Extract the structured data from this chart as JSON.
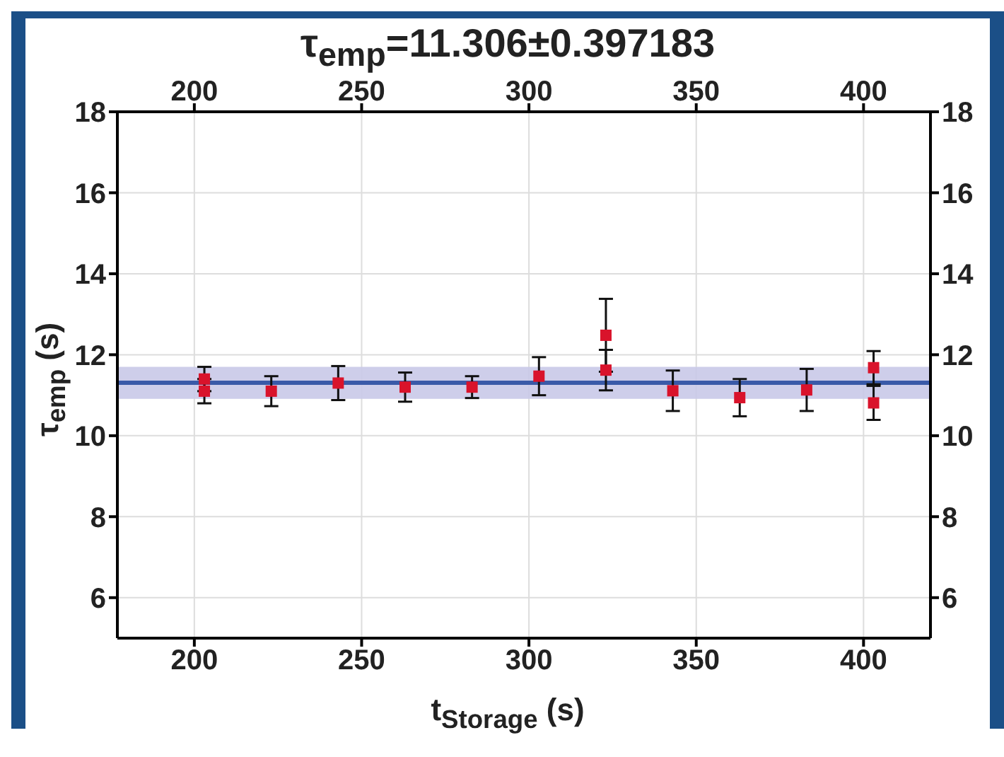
{
  "chart_data": {
    "type": "scatter",
    "title": "τ$_{emp}$=11.306±0.397183",
    "xlabel": "t$_{Storage}$ (s)",
    "ylabel": "τ$_{emp}$ (s)",
    "xlim": [
      177,
      420
    ],
    "xticks": [
      200,
      250,
      300,
      350,
      400
    ],
    "x2lim": [
      177,
      420
    ],
    "x2ticks": [
      200,
      250,
      300,
      350,
      400
    ],
    "ylim": [
      5,
      18
    ],
    "yticks": [
      6,
      8,
      10,
      12,
      14,
      16,
      18
    ],
    "y2lim": [
      5,
      18
    ],
    "y2ticks": [
      6,
      8,
      10,
      12,
      14,
      16,
      18
    ],
    "series": [
      {
        "color": "#d9132b",
        "x": [
          203,
          203,
          223,
          243,
          263,
          283,
          303,
          323,
          323,
          343,
          363,
          383,
          403,
          403
        ],
        "values": [
          11.4,
          11.1,
          11.1,
          11.3,
          11.2,
          11.2,
          11.47,
          12.48,
          11.62,
          11.11,
          10.94,
          11.13,
          11.68,
          10.81
        ],
        "errors": [
          0.3,
          0.3,
          0.37,
          0.42,
          0.36,
          0.27,
          0.47,
          0.9,
          0.5,
          0.5,
          0.46,
          0.52,
          0.41,
          0.42
        ]
      }
    ],
    "ref_lines": [
      {
        "axis": "y",
        "value": 11.306,
        "color": "#3a5aa8",
        "line_style": "solid"
      }
    ],
    "bands": [
      {
        "axis": "y",
        "from": 10.909,
        "to": 11.703,
        "color": "#c9c9e8"
      }
    ],
    "marker": "square",
    "grid": true
  }
}
